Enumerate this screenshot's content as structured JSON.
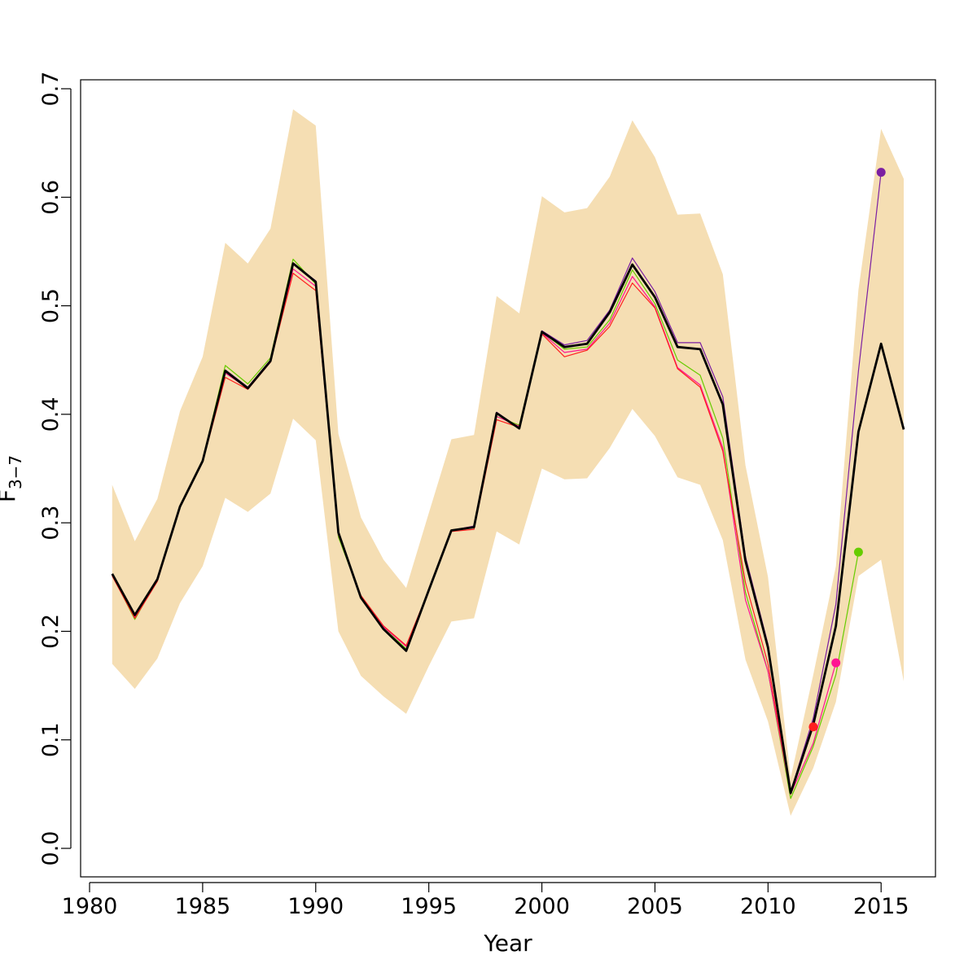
{
  "chart_data": {
    "type": "line",
    "xlabel": "Year",
    "ylabel_main": "F",
    "ylabel_sub": "3−7",
    "xlim": [
      1980,
      2016
    ],
    "ylim": [
      0,
      0.7
    ],
    "x_ticks": [
      1980,
      1985,
      1990,
      1995,
      2000,
      2005,
      2010,
      2015
    ],
    "x_tick_labels": [
      "1980",
      "1985",
      "1990",
      "1995",
      "2000",
      "2005",
      "2010",
      "2015"
    ],
    "y_ticks": [
      0.0,
      0.1,
      0.2,
      0.3,
      0.4,
      0.5,
      0.6,
      0.7
    ],
    "y_tick_labels": [
      "0.0",
      "0.1",
      "0.2",
      "0.3",
      "0.4",
      "0.5",
      "0.6",
      "0.7"
    ],
    "band_color": "#f5deb3",
    "band": {
      "x": [
        1981,
        1982,
        1983,
        1984,
        1985,
        1986,
        1987,
        1988,
        1989,
        1990,
        1991,
        1992,
        1993,
        1994,
        1995,
        1996,
        1997,
        1998,
        1999,
        2000,
        2001,
        2002,
        2003,
        2004,
        2005,
        2006,
        2007,
        2008,
        2009,
        2010,
        2011,
        2012,
        2013,
        2014,
        2015,
        2016
      ],
      "upper": [
        0.335,
        0.283,
        0.322,
        0.403,
        0.453,
        0.558,
        0.539,
        0.571,
        0.681,
        0.666,
        0.382,
        0.305,
        0.266,
        0.24,
        0.309,
        0.377,
        0.381,
        0.509,
        0.493,
        0.601,
        0.586,
        0.59,
        0.619,
        0.671,
        0.637,
        0.584,
        0.585,
        0.529,
        0.353,
        0.25,
        0.065,
        0.16,
        0.26,
        0.515,
        0.663,
        0.617
      ],
      "lower": [
        0.17,
        0.147,
        0.175,
        0.226,
        0.26,
        0.323,
        0.31,
        0.327,
        0.396,
        0.376,
        0.2,
        0.159,
        0.14,
        0.124,
        0.168,
        0.209,
        0.212,
        0.292,
        0.28,
        0.35,
        0.34,
        0.341,
        0.369,
        0.405,
        0.38,
        0.342,
        0.335,
        0.284,
        0.174,
        0.117,
        0.03,
        0.074,
        0.135,
        0.251,
        0.266,
        0.154
      ]
    },
    "series": [
      {
        "color": "#000000",
        "width": 2.8,
        "x": [
          1981,
          1982,
          1983,
          1984,
          1985,
          1986,
          1987,
          1988,
          1989,
          1990,
          1991,
          1992,
          1993,
          1994,
          1995,
          1996,
          1997,
          1998,
          1999,
          2000,
          2001,
          2002,
          2003,
          2004,
          2005,
          2006,
          2007,
          2008,
          2009,
          2010,
          2011,
          2012,
          2013,
          2014,
          2015,
          2016
        ],
        "y": [
          0.253,
          0.215,
          0.248,
          0.315,
          0.357,
          0.44,
          0.424,
          0.449,
          0.539,
          0.522,
          0.291,
          0.231,
          0.202,
          0.182,
          0.238,
          0.293,
          0.296,
          0.401,
          0.387,
          0.476,
          0.462,
          0.465,
          0.494,
          0.538,
          0.508,
          0.462,
          0.46,
          0.409,
          0.265,
          0.185,
          0.051,
          0.114,
          0.205,
          0.384,
          0.465,
          0.386
        ],
        "end_point": false
      },
      {
        "color": "#7b1fa2",
        "width": 1.2,
        "x": [
          1981,
          1982,
          1983,
          1984,
          1985,
          1986,
          1987,
          1988,
          1989,
          1990,
          1991,
          1992,
          1993,
          1994,
          1995,
          1996,
          1997,
          1998,
          1999,
          2000,
          2001,
          2002,
          2003,
          2004,
          2005,
          2006,
          2007,
          2008,
          2009,
          2010,
          2011,
          2012,
          2013,
          2014,
          2015
        ],
        "y": [
          0.253,
          0.214,
          0.249,
          0.316,
          0.358,
          0.441,
          0.425,
          0.45,
          0.539,
          0.523,
          0.288,
          0.231,
          0.202,
          0.183,
          0.239,
          0.293,
          0.297,
          0.402,
          0.387,
          0.477,
          0.464,
          0.468,
          0.496,
          0.544,
          0.513,
          0.466,
          0.466,
          0.416,
          0.269,
          0.188,
          0.052,
          0.12,
          0.225,
          0.44,
          0.623
        ],
        "end_point": true
      },
      {
        "color": "#66cc00",
        "width": 1.2,
        "x": [
          1981,
          1982,
          1983,
          1984,
          1985,
          1986,
          1987,
          1988,
          1989,
          1990,
          1991,
          1992,
          1993,
          1994,
          1995,
          1996,
          1997,
          1998,
          1999,
          2000,
          2001,
          2002,
          2003,
          2004,
          2005,
          2006,
          2007,
          2008,
          2009,
          2010,
          2011,
          2012,
          2013,
          2014
        ],
        "y": [
          0.252,
          0.211,
          0.248,
          0.316,
          0.358,
          0.445,
          0.428,
          0.452,
          0.543,
          0.52,
          0.287,
          0.232,
          0.203,
          0.184,
          0.238,
          0.293,
          0.296,
          0.398,
          0.39,
          0.476,
          0.46,
          0.462,
          0.487,
          0.533,
          0.502,
          0.45,
          0.436,
          0.378,
          0.236,
          0.163,
          0.046,
          0.094,
          0.16,
          0.273
        ],
        "end_point": true
      },
      {
        "color": "#ff1493",
        "width": 1.2,
        "x": [
          1981,
          1982,
          1983,
          1984,
          1985,
          1986,
          1987,
          1988,
          1989,
          1990,
          1991,
          1992,
          1993,
          1994,
          1995,
          1996,
          1997,
          1998,
          1999,
          2000,
          2001,
          2002,
          2003,
          2004,
          2005,
          2006,
          2007,
          2008,
          2009,
          2010,
          2011,
          2012,
          2013
        ],
        "y": [
          0.252,
          0.213,
          0.247,
          0.315,
          0.357,
          0.438,
          0.424,
          0.449,
          0.534,
          0.518,
          0.289,
          0.232,
          0.204,
          0.186,
          0.238,
          0.293,
          0.296,
          0.398,
          0.389,
          0.475,
          0.457,
          0.46,
          0.484,
          0.527,
          0.499,
          0.443,
          0.427,
          0.369,
          0.229,
          0.163,
          0.05,
          0.097,
          0.171
        ],
        "end_point": true
      },
      {
        "color": "#ff2020",
        "width": 1.2,
        "x": [
          1981,
          1982,
          1983,
          1984,
          1985,
          1986,
          1987,
          1988,
          1989,
          1990,
          1991,
          1992,
          1993,
          1994,
          1995,
          1996,
          1997,
          1998,
          1999,
          2000,
          2001,
          2002,
          2003,
          2004,
          2005,
          2006,
          2007,
          2008,
          2009,
          2010,
          2011,
          2012
        ],
        "y": [
          0.251,
          0.212,
          0.246,
          0.314,
          0.356,
          0.434,
          0.423,
          0.448,
          0.53,
          0.514,
          0.29,
          0.233,
          0.205,
          0.187,
          0.238,
          0.292,
          0.294,
          0.395,
          0.388,
          0.474,
          0.453,
          0.459,
          0.481,
          0.521,
          0.498,
          0.442,
          0.425,
          0.366,
          0.245,
          0.17,
          0.05,
          0.112
        ],
        "end_point": true
      }
    ]
  }
}
